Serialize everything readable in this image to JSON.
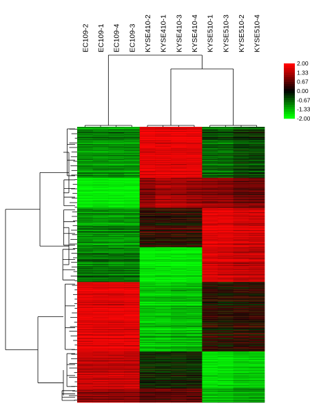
{
  "chart_data": {
    "type": "heatmap",
    "columns": [
      "EC109-2",
      "EC109-1",
      "EC109-4",
      "EC109-3",
      "KYSE410-2",
      "KYSE410-1",
      "KYSE410-3",
      "KYSE410-4",
      "KYSE510-1",
      "KYSE510-3",
      "KYSE510-2",
      "KYSE510-4"
    ],
    "groups": [
      {
        "name": "EC109",
        "columns": [
          0,
          1,
          2,
          3
        ]
      },
      {
        "name": "KYSE410",
        "columns": [
          4,
          5,
          6,
          7
        ]
      },
      {
        "name": "KYSE510",
        "columns": [
          8,
          9,
          10,
          11
        ]
      }
    ],
    "legend": {
      "values": [
        "2.00",
        "1.33",
        "0.67",
        "0.00",
        "-0.67",
        "-1.33",
        "-2.00"
      ],
      "colors": [
        "#ff0000",
        "#c00000",
        "#5a0000",
        "#000000",
        "#005000",
        "#00aa00",
        "#00ff00"
      ]
    },
    "value_range": [
      -2.0,
      2.0
    ],
    "row_clusters": [
      {
        "rows": 220,
        "values": [
          -0.9,
          -0.9,
          -0.9,
          -0.9,
          1.6,
          1.6,
          1.6,
          1.6,
          -0.6,
          -0.6,
          -0.4,
          -0.4
        ]
      },
      {
        "rows": 130,
        "values": [
          -1.7,
          -1.7,
          -1.7,
          -1.7,
          0.9,
          1.1,
          1.1,
          1.0,
          0.9,
          0.9,
          0.7,
          0.7
        ]
      },
      {
        "rows": 170,
        "values": [
          -0.9,
          -0.9,
          -0.9,
          -0.9,
          0.2,
          0.2,
          0.2,
          0.2,
          1.6,
          1.6,
          1.4,
          1.4
        ]
      },
      {
        "rows": 150,
        "values": [
          -0.7,
          -0.7,
          -0.7,
          -0.7,
          -1.6,
          -1.6,
          -1.6,
          -1.6,
          1.5,
          1.4,
          1.3,
          1.3
        ]
      },
      {
        "rows": 300,
        "values": [
          1.6,
          1.6,
          1.6,
          1.6,
          -1.3,
          -1.3,
          -1.2,
          -1.2,
          0.2,
          0.1,
          0.2,
          0.2
        ]
      },
      {
        "rows": 160,
        "values": [
          1.2,
          1.2,
          1.2,
          1.2,
          -0.2,
          -0.2,
          -0.2,
          -0.2,
          -1.6,
          -1.6,
          -1.4,
          -1.4
        ]
      },
      {
        "rows": 60,
        "values": [
          0.9,
          0.9,
          0.9,
          0.9,
          0.6,
          0.6,
          0.6,
          0.6,
          -1.2,
          -1.2,
          -1.0,
          -1.0
        ]
      }
    ]
  }
}
